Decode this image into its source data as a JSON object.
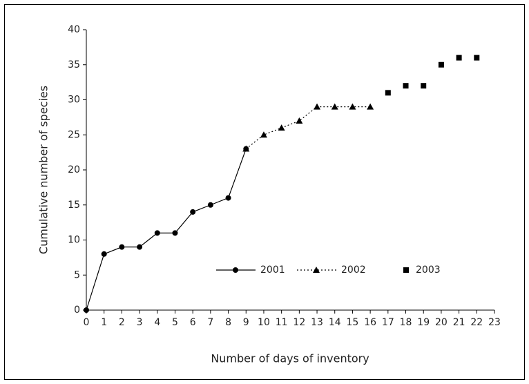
{
  "chart_data": {
    "type": "line",
    "xlabel": "Number of days of inventory",
    "ylabel": "Cumulative number of species",
    "xlim": [
      0,
      23
    ],
    "xticks": [
      0,
      1,
      2,
      3,
      4,
      5,
      6,
      7,
      8,
      9,
      10,
      11,
      12,
      13,
      14,
      15,
      16,
      17,
      18,
      19,
      20,
      21,
      22,
      23
    ],
    "ylim": [
      0,
      40
    ],
    "yticks": [
      0,
      5,
      10,
      15,
      20,
      25,
      30,
      35,
      40
    ],
    "grid": false,
    "series": [
      {
        "name": "2001",
        "color": "#000000",
        "marker": "circle",
        "line_style": "solid",
        "x": [
          0,
          1,
          2,
          3,
          4,
          5,
          6,
          7,
          8,
          9
        ],
        "values": [
          0,
          8,
          9,
          9,
          11,
          11,
          14,
          15,
          16,
          23
        ]
      },
      {
        "name": "2002",
        "color": "#000000",
        "marker": "triangle",
        "line_style": "dotted",
        "x": [
          9,
          10,
          11,
          12,
          13,
          14,
          15,
          16
        ],
        "values": [
          23,
          25,
          26,
          27,
          29,
          29,
          29,
          29
        ]
      },
      {
        "name": "2003",
        "color": "#000000",
        "marker": "square",
        "line_style": "none",
        "x": [
          17,
          18,
          19,
          20,
          21,
          22
        ],
        "values": [
          31,
          32,
          32,
          35,
          36,
          36
        ]
      }
    ]
  }
}
